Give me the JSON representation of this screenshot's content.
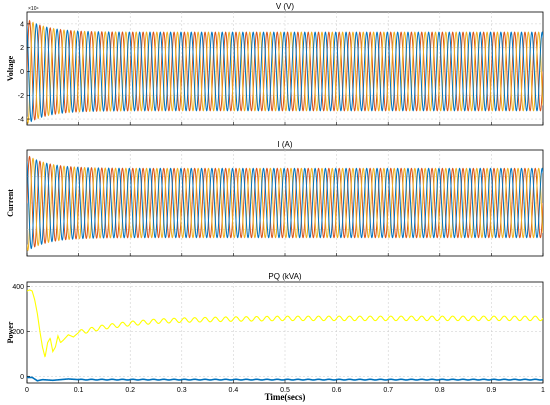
{
  "chart_data": [
    {
      "type": "line",
      "title": "V (V)",
      "ylabel": "Voltage",
      "exponent_label": "×10⁴",
      "xlim": [
        0,
        1
      ],
      "ylim": [
        -4.5,
        5
      ],
      "yticks": [
        -4,
        -2,
        0,
        2,
        4
      ],
      "ytick_labels": [
        "-4",
        "-2",
        "0",
        "2",
        "4"
      ],
      "grid": true,
      "signal": {
        "kind": "three-phase",
        "frequency_hz": 50,
        "steady_amplitude": 3.3,
        "initial_peak": 4.4,
        "transient_tau_s": 0.04
      },
      "series": [
        {
          "phase_deg": 0,
          "color": "#d95319"
        },
        {
          "phase_deg": -120,
          "color": "#edb120"
        },
        {
          "phase_deg": 120,
          "color": "#0072bd"
        }
      ]
    },
    {
      "type": "line",
      "title": "I (A)",
      "ylabel": "Current",
      "xlim": [
        0,
        1
      ],
      "ylim": [
        -9.5,
        9.5
      ],
      "yticks": [],
      "ytick_labels": [],
      "grid": true,
      "signal": {
        "kind": "three-phase",
        "frequency_hz": 50,
        "steady_amplitude": 6.2,
        "initial_peak": 8.6,
        "transient_tau_s": 0.04
      },
      "series": [
        {
          "phase_deg": 0,
          "color": "#d95319"
        },
        {
          "phase_deg": -120,
          "color": "#edb120"
        },
        {
          "phase_deg": 120,
          "color": "#0072bd"
        }
      ]
    },
    {
      "type": "line",
      "title": "PQ (kVA)",
      "ylabel": "Power",
      "xlabel": "Time(secs)",
      "xlim": [
        0,
        1
      ],
      "ylim": [
        -30,
        420
      ],
      "yticks": [
        0,
        200,
        400
      ],
      "ytick_labels": [
        "0",
        "200",
        "400"
      ],
      "xticks": [
        0,
        0.1,
        0.2,
        0.3,
        0.4,
        0.5,
        0.6,
        0.7,
        0.8,
        0.9,
        1
      ],
      "xtick_labels": [
        "0",
        "0.1",
        "0.2",
        "0.3",
        "0.4",
        "0.5",
        "0.6",
        "0.7",
        "0.8",
        "0.9",
        "1"
      ],
      "grid": true,
      "series": [
        {
          "color": "#ffff00",
          "x": [
            0,
            0.005,
            0.01,
            0.015,
            0.02,
            0.025,
            0.03,
            0.035,
            0.04,
            0.045,
            0.05,
            0.055,
            0.06,
            0.065,
            0.07,
            0.08,
            0.09,
            0.1,
            0.12,
            0.15,
            0.2,
            0.25,
            0.3,
            0.4,
            0.5,
            0.6,
            0.7,
            0.8,
            0.9,
            1.0
          ],
          "y": [
            380,
            385,
            380,
            340,
            280,
            200,
            130,
            85,
            150,
            170,
            110,
            130,
            180,
            150,
            160,
            185,
            175,
            195,
            205,
            220,
            235,
            245,
            250,
            255,
            258,
            258,
            258,
            258,
            258,
            258
          ],
          "ripple": 10,
          "ripple_period_s": 0.02
        },
        {
          "color": "#0072bd",
          "x": [
            0,
            0.01,
            0.02,
            0.03,
            0.05,
            0.08,
            0.1,
            0.2,
            1.0
          ],
          "y": [
            -5,
            -5,
            -20,
            -15,
            -18,
            -12,
            -15,
            -15,
            -15
          ],
          "ripple": 1.5,
          "ripple_period_s": 0.02
        }
      ]
    }
  ]
}
